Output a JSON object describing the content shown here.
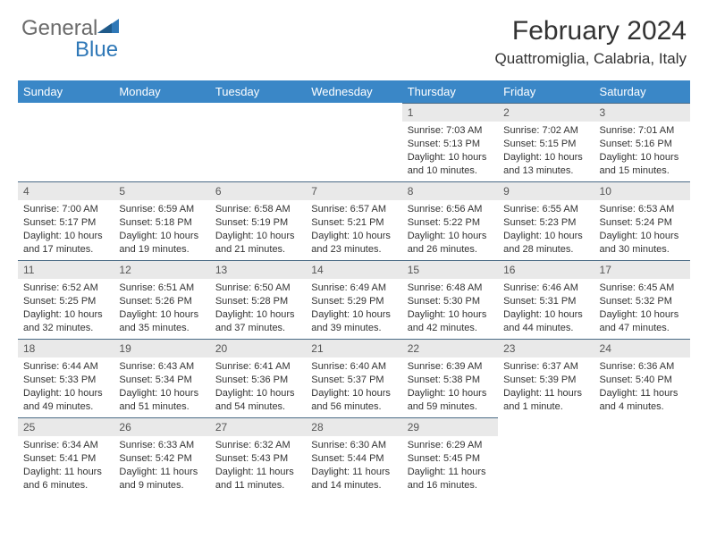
{
  "logo": {
    "text1": "General",
    "text2": "Blue"
  },
  "title": "February 2024",
  "location": "Quattromiglia, Calabria, Italy",
  "colors": {
    "header_bg": "#3a87c7",
    "daynum_bg": "#e9e9e9",
    "daynum_border": "#4a6a85",
    "logo_gray": "#6b6b6b",
    "logo_blue": "#2f78b7"
  },
  "weekdays": [
    "Sunday",
    "Monday",
    "Tuesday",
    "Wednesday",
    "Thursday",
    "Friday",
    "Saturday"
  ],
  "weeks": [
    [
      null,
      null,
      null,
      null,
      {
        "n": "1",
        "sunrise": "7:03 AM",
        "sunset": "5:13 PM",
        "dl": "10 hours and 10 minutes."
      },
      {
        "n": "2",
        "sunrise": "7:02 AM",
        "sunset": "5:15 PM",
        "dl": "10 hours and 13 minutes."
      },
      {
        "n": "3",
        "sunrise": "7:01 AM",
        "sunset": "5:16 PM",
        "dl": "10 hours and 15 minutes."
      }
    ],
    [
      {
        "n": "4",
        "sunrise": "7:00 AM",
        "sunset": "5:17 PM",
        "dl": "10 hours and 17 minutes."
      },
      {
        "n": "5",
        "sunrise": "6:59 AM",
        "sunset": "5:18 PM",
        "dl": "10 hours and 19 minutes."
      },
      {
        "n": "6",
        "sunrise": "6:58 AM",
        "sunset": "5:19 PM",
        "dl": "10 hours and 21 minutes."
      },
      {
        "n": "7",
        "sunrise": "6:57 AM",
        "sunset": "5:21 PM",
        "dl": "10 hours and 23 minutes."
      },
      {
        "n": "8",
        "sunrise": "6:56 AM",
        "sunset": "5:22 PM",
        "dl": "10 hours and 26 minutes."
      },
      {
        "n": "9",
        "sunrise": "6:55 AM",
        "sunset": "5:23 PM",
        "dl": "10 hours and 28 minutes."
      },
      {
        "n": "10",
        "sunrise": "6:53 AM",
        "sunset": "5:24 PM",
        "dl": "10 hours and 30 minutes."
      }
    ],
    [
      {
        "n": "11",
        "sunrise": "6:52 AM",
        "sunset": "5:25 PM",
        "dl": "10 hours and 32 minutes."
      },
      {
        "n": "12",
        "sunrise": "6:51 AM",
        "sunset": "5:26 PM",
        "dl": "10 hours and 35 minutes."
      },
      {
        "n": "13",
        "sunrise": "6:50 AM",
        "sunset": "5:28 PM",
        "dl": "10 hours and 37 minutes."
      },
      {
        "n": "14",
        "sunrise": "6:49 AM",
        "sunset": "5:29 PM",
        "dl": "10 hours and 39 minutes."
      },
      {
        "n": "15",
        "sunrise": "6:48 AM",
        "sunset": "5:30 PM",
        "dl": "10 hours and 42 minutes."
      },
      {
        "n": "16",
        "sunrise": "6:46 AM",
        "sunset": "5:31 PM",
        "dl": "10 hours and 44 minutes."
      },
      {
        "n": "17",
        "sunrise": "6:45 AM",
        "sunset": "5:32 PM",
        "dl": "10 hours and 47 minutes."
      }
    ],
    [
      {
        "n": "18",
        "sunrise": "6:44 AM",
        "sunset": "5:33 PM",
        "dl": "10 hours and 49 minutes."
      },
      {
        "n": "19",
        "sunrise": "6:43 AM",
        "sunset": "5:34 PM",
        "dl": "10 hours and 51 minutes."
      },
      {
        "n": "20",
        "sunrise": "6:41 AM",
        "sunset": "5:36 PM",
        "dl": "10 hours and 54 minutes."
      },
      {
        "n": "21",
        "sunrise": "6:40 AM",
        "sunset": "5:37 PM",
        "dl": "10 hours and 56 minutes."
      },
      {
        "n": "22",
        "sunrise": "6:39 AM",
        "sunset": "5:38 PM",
        "dl": "10 hours and 59 minutes."
      },
      {
        "n": "23",
        "sunrise": "6:37 AM",
        "sunset": "5:39 PM",
        "dl": "11 hours and 1 minute."
      },
      {
        "n": "24",
        "sunrise": "6:36 AM",
        "sunset": "5:40 PM",
        "dl": "11 hours and 4 minutes."
      }
    ],
    [
      {
        "n": "25",
        "sunrise": "6:34 AM",
        "sunset": "5:41 PM",
        "dl": "11 hours and 6 minutes."
      },
      {
        "n": "26",
        "sunrise": "6:33 AM",
        "sunset": "5:42 PM",
        "dl": "11 hours and 9 minutes."
      },
      {
        "n": "27",
        "sunrise": "6:32 AM",
        "sunset": "5:43 PM",
        "dl": "11 hours and 11 minutes."
      },
      {
        "n": "28",
        "sunrise": "6:30 AM",
        "sunset": "5:44 PM",
        "dl": "11 hours and 14 minutes."
      },
      {
        "n": "29",
        "sunrise": "6:29 AM",
        "sunset": "5:45 PM",
        "dl": "11 hours and 16 minutes."
      },
      null,
      null
    ]
  ],
  "labels": {
    "sunrise": "Sunrise: ",
    "sunset": "Sunset: ",
    "daylight": "Daylight: "
  }
}
